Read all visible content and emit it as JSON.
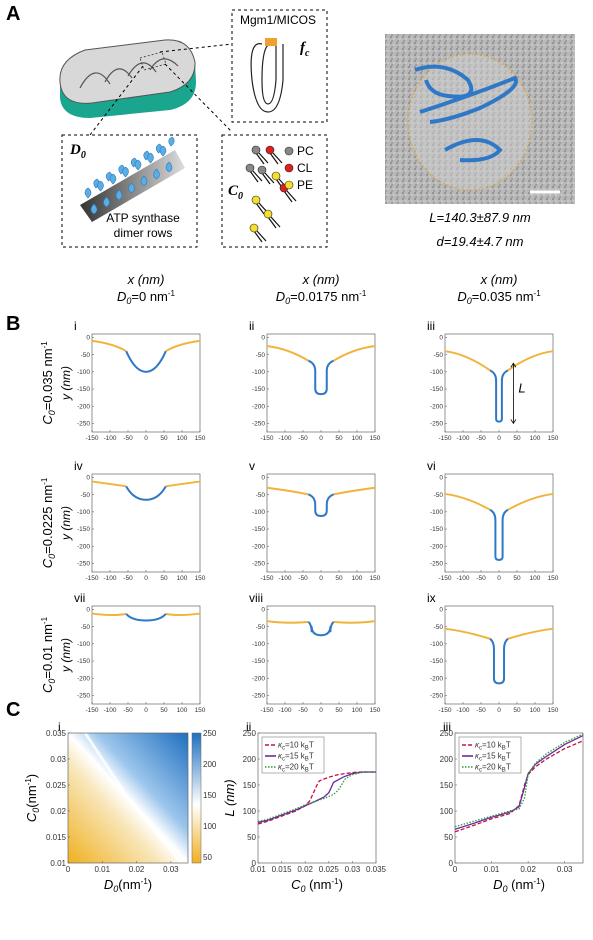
{
  "panel_labels": {
    "a": "A",
    "b": "B",
    "c": "C"
  },
  "panel_a": {
    "mgm1_label": "Mgm1/MICOS",
    "fc_label": "f",
    "fc_sub": "c",
    "d0_label": "D",
    "d0_sub": "0",
    "atp_line1": "ATP synthase",
    "atp_line2": "dimer rows",
    "c0_label": "C",
    "c0_sub": "0",
    "lipids": [
      "PC",
      "CL",
      "PE"
    ],
    "L_text": "L=140.3±87.9 nm",
    "d_text": "d=19.4±4.7 nm"
  },
  "panel_b": {
    "col_x_label": "x (nm)",
    "columns": [
      {
        "label": "D0=0 nm-1",
        "prefix": "D",
        "sub": "0",
        "rest": "=0 nm",
        "sup": "-1"
      },
      {
        "label": "D0=0.0175 nm-1",
        "prefix": "D",
        "sub": "0",
        "rest": "=0.0175 nm",
        "sup": "-1"
      },
      {
        "label": "D0=0.035 nm-1",
        "prefix": "D",
        "sub": "0",
        "rest": "=0.035 nm",
        "sup": "-1"
      }
    ],
    "rows": [
      {
        "prefix": "C",
        "sub": "0",
        "rest": "=0.035 nm",
        "sup": "-1"
      },
      {
        "prefix": "C",
        "sub": "0",
        "rest": "=0.0225 nm",
        "sup": "-1"
      },
      {
        "prefix": "C",
        "sub": "0",
        "rest": "=0.01 nm",
        "sup": "-1"
      }
    ],
    "y_label": "y (nm)",
    "roman": [
      "i",
      "ii",
      "iii",
      "iv",
      "v",
      "vi",
      "vii",
      "viii",
      "ix"
    ],
    "x_ticks": [
      "-150",
      "-100",
      "-50",
      "0",
      "50",
      "100",
      "150"
    ],
    "y_ticks": [
      "0",
      "-50",
      "-100",
      "-150",
      "-200",
      "-250"
    ],
    "L_marker": "L"
  },
  "panel_c": {
    "roman": [
      "i",
      "ii",
      "iii"
    ],
    "heatmap": {
      "xlabel_prefix": "D",
      "xlabel_sub": "0",
      "xlabel_rest": "(nm",
      "xlabel_sup": "-1",
      "xlabel_end": ")",
      "ylabel_prefix": "C",
      "ylabel_sub": "0",
      "ylabel_rest": "(nm",
      "ylabel_sup": "-1",
      "ylabel_end": ")",
      "x_ticks": [
        "0",
        "0.01",
        "0.02",
        "0.03"
      ],
      "y_ticks": [
        "0.01",
        "0.015",
        "0.02",
        "0.025",
        "0.03",
        "0.035"
      ],
      "cbar_ticks": [
        "50",
        "100",
        "150",
        "200",
        "250"
      ]
    },
    "ii": {
      "xlabel_prefix": "C",
      "xlabel_sub": "0",
      "xlabel_rest": " (nm",
      "xlabel_sup": "-1",
      "xlabel_end": ")",
      "ylabel": "L (nm)",
      "x_ticks": [
        "0.01",
        "0.015",
        "0.02",
        "0.025",
        "0.03",
        "0.035"
      ],
      "y_ticks": [
        "0",
        "50",
        "100",
        "150",
        "200",
        "250"
      ]
    },
    "iii": {
      "xlabel_prefix": "D",
      "xlabel_sub": "0",
      "xlabel_rest": " (nm",
      "xlabel_sup": "-1",
      "xlabel_end": ")",
      "x_ticks": [
        "0",
        "0.01",
        "0.02",
        "0.03"
      ],
      "y_ticks": [
        "0",
        "50",
        "100",
        "150",
        "200",
        "250"
      ]
    },
    "legend": [
      {
        "kappa": "κ",
        "sub": "c",
        "value": "=10 k",
        "unit_sub": "B",
        "unit_end": "T",
        "color": "#c0144a",
        "style": "dashed"
      },
      {
        "kappa": "κ",
        "sub": "c",
        "value": "=15 k",
        "unit_sub": "B",
        "unit_end": "T",
        "color": "#6a2c9e",
        "style": "solid"
      },
      {
        "kappa": "κ",
        "sub": "c",
        "value": "=20 k",
        "unit_sub": "B",
        "unit_end": "T",
        "color": "#2a9d3a",
        "style": "dotted"
      }
    ]
  },
  "colors": {
    "orange": "#f0b43a",
    "blue": "#2f78c8",
    "teal": "#1aa58f",
    "red": "#e02020",
    "yellow": "#f4e02a",
    "grey": "#888888"
  },
  "chart_data": [
    {
      "type": "line",
      "panel": "C-ii",
      "xlabel": "C0 (nm-1)",
      "ylabel": "L (nm)",
      "xlim": [
        0.01,
        0.035
      ],
      "ylim": [
        0,
        250
      ],
      "series": [
        {
          "name": "κc=10 kBT",
          "x": [
            0.01,
            0.012,
            0.015,
            0.018,
            0.02,
            0.021,
            0.022,
            0.0225,
            0.023,
            0.025,
            0.027,
            0.03,
            0.032,
            0.035
          ],
          "y": [
            75,
            80,
            90,
            100,
            110,
            120,
            140,
            150,
            158,
            165,
            170,
            174,
            175,
            175
          ]
        },
        {
          "name": "κc=15 kBT",
          "x": [
            0.01,
            0.012,
            0.015,
            0.018,
            0.02,
            0.022,
            0.024,
            0.025,
            0.026,
            0.027,
            0.028,
            0.03,
            0.032,
            0.035
          ],
          "y": [
            78,
            82,
            92,
            102,
            110,
            118,
            127,
            135,
            155,
            160,
            165,
            172,
            175,
            175
          ]
        },
        {
          "name": "κc=20 kBT",
          "x": [
            0.01,
            0.012,
            0.015,
            0.018,
            0.02,
            0.022,
            0.024,
            0.025,
            0.026,
            0.027,
            0.0285,
            0.03,
            0.032,
            0.035
          ],
          "y": [
            80,
            84,
            94,
            104,
            112,
            118,
            124,
            128,
            132,
            140,
            162,
            170,
            174,
            175
          ]
        }
      ]
    },
    {
      "type": "line",
      "panel": "C-iii",
      "xlabel": "D0 (nm-1)",
      "ylabel": "",
      "xlim": [
        0,
        0.035
      ],
      "ylim": [
        0,
        250
      ],
      "series": [
        {
          "name": "κc=10 kBT",
          "x": [
            0,
            0.005,
            0.01,
            0.015,
            0.0175,
            0.019,
            0.02,
            0.022,
            0.025,
            0.03,
            0.035
          ],
          "y": [
            60,
            72,
            85,
            95,
            110,
            150,
            170,
            185,
            200,
            220,
            235
          ]
        },
        {
          "name": "κc=15 kBT",
          "x": [
            0,
            0.005,
            0.01,
            0.015,
            0.0175,
            0.019,
            0.02,
            0.022,
            0.025,
            0.03,
            0.035
          ],
          "y": [
            65,
            76,
            88,
            98,
            108,
            145,
            172,
            190,
            205,
            228,
            245
          ]
        },
        {
          "name": "κc=20 kBT",
          "x": [
            0,
            0.005,
            0.01,
            0.015,
            0.0175,
            0.019,
            0.02,
            0.022,
            0.025,
            0.03,
            0.035
          ],
          "y": [
            70,
            80,
            90,
            100,
            104,
            125,
            170,
            192,
            210,
            232,
            248
          ]
        }
      ]
    },
    {
      "type": "heatmap",
      "panel": "C-i",
      "xlabel": "D0 (nm-1)",
      "ylabel": "C0 (nm-1)",
      "xlim": [
        0,
        0.035
      ],
      "ylim": [
        0.01,
        0.035
      ],
      "colorbar_range": [
        40,
        250
      ],
      "boundary": {
        "x": [
          0.033,
          0.0175,
          0.005
        ],
        "y": [
          0.01,
          0.0225,
          0.035
        ]
      }
    },
    {
      "type": "line",
      "panel": "B",
      "xlabel": "x (nm)",
      "ylabel": "y (nm)",
      "xlim": [
        -150,
        150
      ],
      "ylim": [
        -275,
        10
      ],
      "series": [
        {
          "name": "i",
          "tip_depth": -100
        },
        {
          "name": "ii",
          "tip_depth": -165
        },
        {
          "name": "iii",
          "tip_depth": -245
        },
        {
          "name": "iv",
          "tip_depth": -65
        },
        {
          "name": "v",
          "tip_depth": -112
        },
        {
          "name": "vi",
          "tip_depth": -240
        },
        {
          "name": "vii",
          "tip_depth": -32
        },
        {
          "name": "viii",
          "tip_depth": -75
        },
        {
          "name": "ix",
          "tip_depth": -215
        }
      ]
    }
  ]
}
